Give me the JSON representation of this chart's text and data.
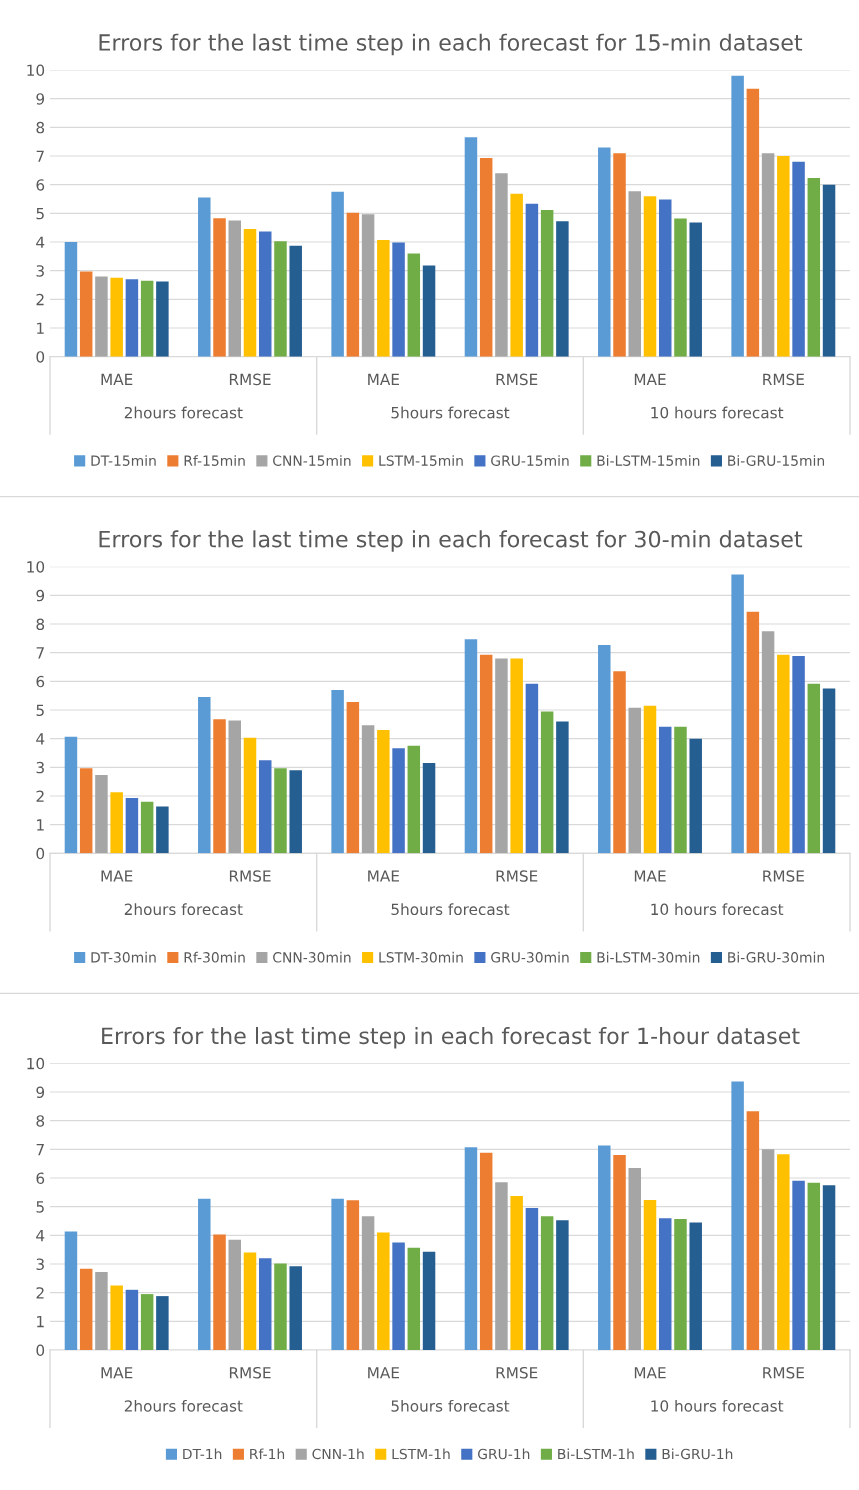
{
  "chart_data": [
    {
      "type": "bar",
      "title": "Errors for the last time step in each forecast for 15-min dataset",
      "categories": [
        "MAE",
        "RMSE",
        "MAE",
        "RMSE",
        "MAE",
        "RMSE"
      ],
      "annotations": [
        "2hours forecast",
        "5hours forecast",
        "10 hours forecast"
      ],
      "ylim": [
        0,
        10
      ],
      "yticks": [
        0,
        1,
        2,
        3,
        4,
        5,
        6,
        7,
        8,
        9,
        10
      ],
      "grid": "y",
      "legend": "bottom",
      "series": [
        {
          "name": "DT-15min",
          "color": "#5b9bd5",
          "values": [
            4.0,
            5.55,
            5.75,
            7.65,
            7.3,
            9.8
          ]
        },
        {
          "name": "Rf-15min",
          "color": "#ed7d31",
          "values": [
            2.97,
            4.83,
            5.02,
            6.93,
            7.1,
            9.35
          ]
        },
        {
          "name": "CNN-15min",
          "color": "#a5a5a5",
          "values": [
            2.8,
            4.75,
            4.97,
            6.4,
            5.77,
            7.1
          ]
        },
        {
          "name": "LSTM-15min",
          "color": "#ffc000",
          "values": [
            2.75,
            4.45,
            4.07,
            5.68,
            5.6,
            7.0
          ]
        },
        {
          "name": "GRU-15min",
          "color": "#4472c4",
          "values": [
            2.7,
            4.37,
            3.98,
            5.33,
            5.48,
            6.8
          ]
        },
        {
          "name": "Bi-LSTM-15min",
          "color": "#70ad47",
          "values": [
            2.65,
            4.03,
            3.6,
            5.12,
            4.82,
            6.23
          ]
        },
        {
          "name": "Bi-GRU-15min",
          "color": "#255e91",
          "values": [
            2.62,
            3.87,
            3.18,
            4.72,
            4.68,
            6.0
          ]
        }
      ]
    },
    {
      "type": "bar",
      "title": "Errors for the last time step in each forecast for 30-min dataset",
      "categories": [
        "MAE",
        "RMSE",
        "MAE",
        "RMSE",
        "MAE",
        "RMSE"
      ],
      "annotations": [
        "2hours forecast",
        "5hours forecast",
        "10 hours forecast"
      ],
      "ylim": [
        0,
        10
      ],
      "yticks": [
        0,
        1,
        2,
        3,
        4,
        5,
        6,
        7,
        8,
        9,
        10
      ],
      "grid": "y",
      "legend": "bottom",
      "series": [
        {
          "name": "DT-30min",
          "color": "#5b9bd5",
          "values": [
            4.07,
            5.45,
            5.7,
            7.47,
            7.27,
            9.73
          ]
        },
        {
          "name": "Rf-30min",
          "color": "#ed7d31",
          "values": [
            2.97,
            4.68,
            5.28,
            6.93,
            6.35,
            8.43
          ]
        },
        {
          "name": "CNN-30min",
          "color": "#a5a5a5",
          "values": [
            2.73,
            4.63,
            4.47,
            6.8,
            5.08,
            7.75
          ]
        },
        {
          "name": "LSTM-30min",
          "color": "#ffc000",
          "values": [
            2.13,
            4.03,
            4.3,
            6.8,
            5.15,
            6.93
          ]
        },
        {
          "name": "GRU-30min",
          "color": "#4472c4",
          "values": [
            1.93,
            3.25,
            3.67,
            5.92,
            4.42,
            6.88
          ]
        },
        {
          "name": "Bi-LSTM-30min",
          "color": "#70ad47",
          "values": [
            1.8,
            2.97,
            3.75,
            4.95,
            4.42,
            5.92
          ]
        },
        {
          "name": "Bi-GRU-30min",
          "color": "#255e91",
          "values": [
            1.63,
            2.9,
            3.15,
            4.6,
            4.0,
            5.75
          ]
        }
      ]
    },
    {
      "type": "bar",
      "title": "Errors for the last time step in each forecast for 1-hour dataset",
      "categories": [
        "MAE",
        "RMSE",
        "MAE",
        "RMSE",
        "MAE",
        "RMSE"
      ],
      "annotations": [
        "2hours forecast",
        "5hours forecast",
        "10 hours forecast"
      ],
      "ylim": [
        0,
        10
      ],
      "yticks": [
        0,
        1,
        2,
        3,
        4,
        5,
        6,
        7,
        8,
        9,
        10
      ],
      "grid": "y",
      "legend": "bottom",
      "series": [
        {
          "name": "DT-1h",
          "color": "#5b9bd5",
          "values": [
            4.13,
            5.28,
            5.28,
            7.07,
            7.13,
            9.37
          ]
        },
        {
          "name": "Rf-1h",
          "color": "#ed7d31",
          "values": [
            2.83,
            4.03,
            5.22,
            6.88,
            6.8,
            8.33
          ]
        },
        {
          "name": "CNN-1h",
          "color": "#a5a5a5",
          "values": [
            2.72,
            3.85,
            4.67,
            5.85,
            6.35,
            7.0
          ]
        },
        {
          "name": "LSTM-1h",
          "color": "#ffc000",
          "values": [
            2.25,
            3.4,
            4.1,
            5.37,
            5.23,
            6.83
          ]
        },
        {
          "name": "GRU-1h",
          "color": "#4472c4",
          "values": [
            2.1,
            3.2,
            3.75,
            4.95,
            4.6,
            5.9
          ]
        },
        {
          "name": "Bi-LSTM-1h",
          "color": "#70ad47",
          "values": [
            1.95,
            3.02,
            3.57,
            4.67,
            4.57,
            5.83
          ]
        },
        {
          "name": "Bi-GRU-1h",
          "color": "#255e91",
          "values": [
            1.88,
            2.92,
            3.43,
            4.53,
            4.45,
            5.75
          ]
        }
      ]
    }
  ]
}
